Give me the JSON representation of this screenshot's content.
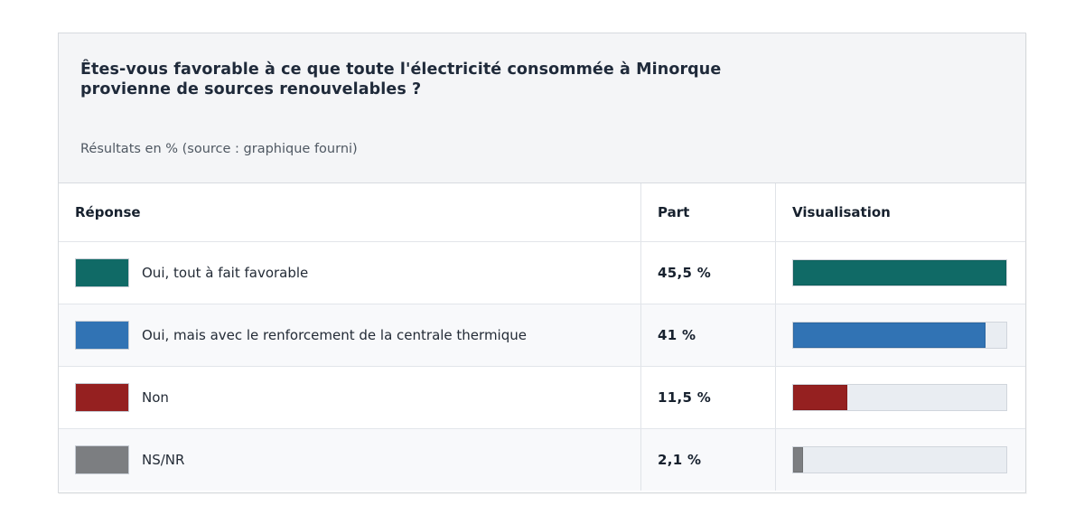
{
  "header": {
    "title": "Êtes-vous favorable à ce que toute l'électricité consommée à Minorque provienne de sources renouvelables ?",
    "subtitle": "Résultats en % (source : graphique fourni)"
  },
  "table": {
    "columns": [
      "Réponse",
      "Part",
      "Visualisation"
    ],
    "rows": [
      {
        "label": "Oui, tout à fait favorable",
        "part": "45,5 %",
        "value": 45.5,
        "color": "#106a66"
      },
      {
        "label": "Oui, mais avec le renforcement de la centrale thermique",
        "part": "41 %",
        "value": 41,
        "color": "#3173b4"
      },
      {
        "label": "Non",
        "part": "11,5 %",
        "value": 11.5,
        "color": "#952020"
      },
      {
        "label": "NS/NR",
        "part": "2,1 %",
        "value": 2.1,
        "color": "#7c7e81"
      }
    ]
  },
  "chart_data": {
    "type": "bar",
    "title": "Êtes-vous favorable à ce que toute l'électricité consommée à Minorque provienne de sources renouvelables ?",
    "subtitle": "Résultats en % (source : graphique fourni)",
    "categories": [
      "Oui, tout à fait favorable",
      "Oui, mais avec le renforcement de la centrale thermique",
      "Non",
      "NS/NR"
    ],
    "values": [
      45.5,
      41,
      11.5,
      2.1
    ],
    "value_labels": [
      "45,5 %",
      "41 %",
      "11,5 %",
      "2,1 %"
    ],
    "colors": [
      "#106a66",
      "#3173b4",
      "#952020",
      "#7c7e81"
    ],
    "xlabel": "Part (%)",
    "ylabel": "Réponse",
    "xlim": [
      0,
      45.5
    ],
    "orientation": "horizontal",
    "grid": false,
    "legend": "none",
    "bar_scale": "relative-to-max"
  }
}
